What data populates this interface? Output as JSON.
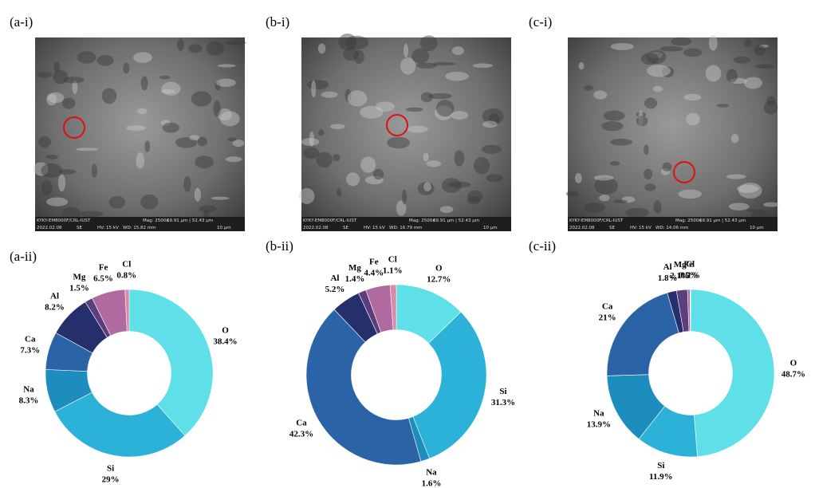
{
  "images": [
    {
      "label": "(a-i)",
      "caption": [
        "KYKY-EM8000F/CRL-IUST",
        "2022.02.08",
        "SE",
        "HV: 15 kV",
        "WD: 15.82 mm",
        "Mag: 2500x",
        "69.91 µm | 52.43 µm",
        "10 µm"
      ]
    },
    {
      "label": "(b-i)",
      "caption": [
        "KYKY-EM8000F/CRL-IUST",
        "2022.02.08",
        "SE",
        "HV: 15 kV",
        "WD: 16.79 mm",
        "Mag: 2500x",
        "69.91 µm | 52.43 µm",
        "10 µm"
      ]
    },
    {
      "label": "(c-i)",
      "caption": [
        "KYKY-EM8000F/CRL-IUST",
        "2022.02.08",
        "SE",
        "HV: 15 kV",
        "WD: 14.06 mm",
        "Mag: 2500x",
        "69.91 µm | 52.43 µm",
        "10 µm"
      ]
    }
  ],
  "chart_data": [
    {
      "type": "donut",
      "title": "(a-ii)",
      "categories": [
        "O",
        "Si",
        "Na",
        "Ca",
        "Al",
        "Mg",
        "Fe",
        "Cl"
      ],
      "values": [
        38.4,
        29,
        8.3,
        7.3,
        8.2,
        1.5,
        6.5,
        0.8
      ],
      "value_labels": [
        "38.4%",
        "29%",
        "8.3%",
        "7.3%",
        "8.2%",
        "1.5%",
        "6.5%",
        "0.8%"
      ],
      "colors": [
        "#5fdfe7",
        "#2cb2d8",
        "#1c8dbd",
        "#2b64a6",
        "#252f6c",
        "#5b3e7c",
        "#b06aa0",
        "#d98aa5"
      ]
    },
    {
      "type": "donut",
      "title": "(b-ii)",
      "categories": [
        "O",
        "Si",
        "Na",
        "Ca",
        "Al",
        "Mg",
        "Fe",
        "Cl"
      ],
      "values": [
        12.7,
        31.3,
        1.6,
        42.3,
        5.2,
        1.4,
        4.4,
        1.1
      ],
      "value_labels": [
        "12.7%",
        "31.3%",
        "1.6%",
        "42.3%",
        "5.2%",
        "1.4%",
        "4.4%",
        "1.1%"
      ],
      "colors": [
        "#5fdfe7",
        "#2cb2d8",
        "#1c8dbd",
        "#2b64a6",
        "#252f6c",
        "#5b3e7c",
        "#b06aa0",
        "#d98aa5"
      ]
    },
    {
      "type": "donut",
      "title": "(c-ii)",
      "categories": [
        "O",
        "Si",
        "Na",
        "Ca",
        "Al",
        "Mg",
        "Fe",
        "Cl"
      ],
      "values": [
        48.7,
        11.9,
        13.9,
        21,
        1.8,
        2.1,
        0.5,
        0.1
      ],
      "value_labels": [
        "48.7%",
        "11.9%",
        "13.9%",
        "21%",
        "1.8%",
        "2.1%",
        "0.5%",
        "0.1%"
      ],
      "colors": [
        "#5fdfe7",
        "#2cb2d8",
        "#1c8dbd",
        "#2b64a6",
        "#252f6c",
        "#5b3e7c",
        "#b06aa0",
        "#d98aa5"
      ]
    }
  ]
}
